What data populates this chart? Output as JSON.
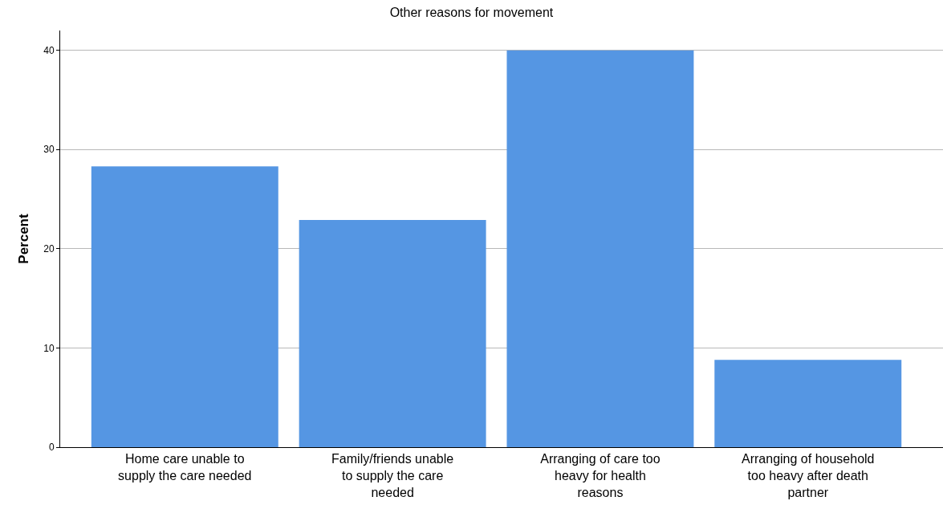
{
  "chart_data": {
    "type": "bar",
    "title": "Other reasons for movement",
    "ylabel": "Percent",
    "categories": [
      "Home care unable to supply the care needed",
      "Family/friends unable to supply the care needed",
      "Arranging of care too heavy for health reasons",
      "Arranging of household too heavy after death partner"
    ],
    "values": [
      28.3,
      22.9,
      40.0,
      8.8
    ],
    "color": "#5596e3",
    "ylim": [
      0,
      42
    ],
    "yticks": [
      0,
      10,
      20,
      30,
      40
    ],
    "grid": "y"
  }
}
